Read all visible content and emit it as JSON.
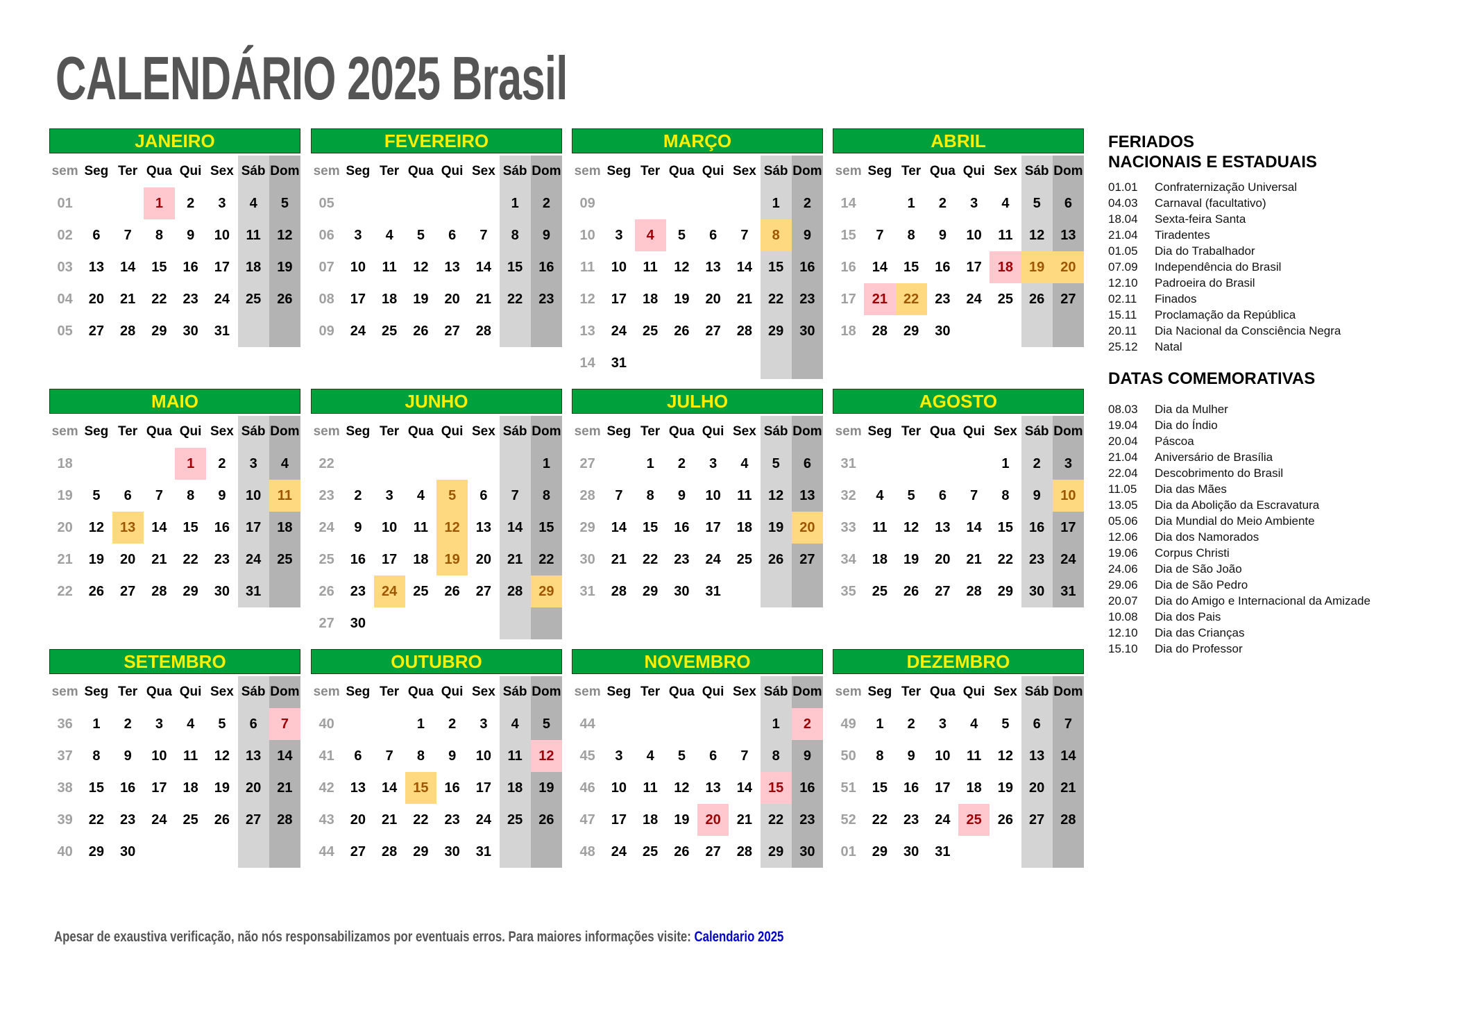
{
  "title": "CALENDÁRIO 2025 Brasil",
  "colors": {
    "header_green": "#00a03c",
    "header_text": "#ffee00",
    "holiday_bg": "#ffc7ce",
    "holiday_text": "#9c0006",
    "commemorative_bg": "#ffd980",
    "commemorative_text": "#9c5700",
    "saturday_bg": "#d4d4d4",
    "sunday_bg": "#b3b3b3"
  },
  "day_headers": [
    "sem",
    "Seg",
    "Ter",
    "Qua",
    "Qui",
    "Sex",
    "Sáb",
    "Dom"
  ],
  "months": [
    {
      "name": "JANEIRO",
      "rows": [
        [
          "01",
          "",
          "",
          "1",
          "2",
          "3",
          "4",
          "5"
        ],
        [
          "02",
          "6",
          "7",
          "8",
          "9",
          "10",
          "11",
          "12"
        ],
        [
          "03",
          "13",
          "14",
          "15",
          "16",
          "17",
          "18",
          "19"
        ],
        [
          "04",
          "20",
          "21",
          "22",
          "23",
          "24",
          "25",
          "26"
        ],
        [
          "05",
          "27",
          "28",
          "29",
          "30",
          "31",
          "",
          ""
        ]
      ],
      "holidays": [
        "1"
      ],
      "commemorative": []
    },
    {
      "name": "FEVEREIRO",
      "rows": [
        [
          "05",
          "",
          "",
          "",
          "",
          "",
          "1",
          "2"
        ],
        [
          "06",
          "3",
          "4",
          "5",
          "6",
          "7",
          "8",
          "9"
        ],
        [
          "07",
          "10",
          "11",
          "12",
          "13",
          "14",
          "15",
          "16"
        ],
        [
          "08",
          "17",
          "18",
          "19",
          "20",
          "21",
          "22",
          "23"
        ],
        [
          "09",
          "24",
          "25",
          "26",
          "27",
          "28",
          "",
          ""
        ]
      ],
      "holidays": [],
      "commemorative": []
    },
    {
      "name": "MARÇO",
      "rows": [
        [
          "09",
          "",
          "",
          "",
          "",
          "",
          "1",
          "2"
        ],
        [
          "10",
          "3",
          "4",
          "5",
          "6",
          "7",
          "8",
          "9"
        ],
        [
          "11",
          "10",
          "11",
          "12",
          "13",
          "14",
          "15",
          "16"
        ],
        [
          "12",
          "17",
          "18",
          "19",
          "20",
          "21",
          "22",
          "23"
        ],
        [
          "13",
          "24",
          "25",
          "26",
          "27",
          "28",
          "29",
          "30"
        ],
        [
          "14",
          "31",
          "",
          "",
          "",
          "",
          "",
          ""
        ]
      ],
      "holidays": [
        "4"
      ],
      "commemorative": [
        "8"
      ]
    },
    {
      "name": "ABRIL",
      "rows": [
        [
          "14",
          "",
          "1",
          "2",
          "3",
          "4",
          "5",
          "6"
        ],
        [
          "15",
          "7",
          "8",
          "9",
          "10",
          "11",
          "12",
          "13"
        ],
        [
          "16",
          "14",
          "15",
          "16",
          "17",
          "18",
          "19",
          "20"
        ],
        [
          "17",
          "21",
          "22",
          "23",
          "24",
          "25",
          "26",
          "27"
        ],
        [
          "18",
          "28",
          "29",
          "30",
          "",
          "",
          "",
          ""
        ]
      ],
      "holidays": [
        "18",
        "21"
      ],
      "commemorative": [
        "19",
        "20",
        "22"
      ]
    },
    {
      "name": "MAIO",
      "rows": [
        [
          "18",
          "",
          "",
          "",
          "1",
          "2",
          "3",
          "4"
        ],
        [
          "19",
          "5",
          "6",
          "7",
          "8",
          "9",
          "10",
          "11"
        ],
        [
          "20",
          "12",
          "13",
          "14",
          "15",
          "16",
          "17",
          "18"
        ],
        [
          "21",
          "19",
          "20",
          "21",
          "22",
          "23",
          "24",
          "25"
        ],
        [
          "22",
          "26",
          "27",
          "28",
          "29",
          "30",
          "31",
          ""
        ]
      ],
      "holidays": [
        "1"
      ],
      "commemorative": [
        "11",
        "13"
      ]
    },
    {
      "name": "JUNHO",
      "rows": [
        [
          "22",
          "",
          "",
          "",
          "",
          "",
          "",
          "1"
        ],
        [
          "23",
          "2",
          "3",
          "4",
          "5",
          "6",
          "7",
          "8"
        ],
        [
          "24",
          "9",
          "10",
          "11",
          "12",
          "13",
          "14",
          "15"
        ],
        [
          "25",
          "16",
          "17",
          "18",
          "19",
          "20",
          "21",
          "22"
        ],
        [
          "26",
          "23",
          "24",
          "25",
          "26",
          "27",
          "28",
          "29"
        ],
        [
          "27",
          "30",
          "",
          "",
          "",
          "",
          "",
          ""
        ]
      ],
      "holidays": [],
      "commemorative": [
        "5",
        "12",
        "19",
        "24",
        "29"
      ]
    },
    {
      "name": "JULHO",
      "rows": [
        [
          "27",
          "",
          "1",
          "2",
          "3",
          "4",
          "5",
          "6"
        ],
        [
          "28",
          "7",
          "8",
          "9",
          "10",
          "11",
          "12",
          "13"
        ],
        [
          "29",
          "14",
          "15",
          "16",
          "17",
          "18",
          "19",
          "20"
        ],
        [
          "30",
          "21",
          "22",
          "23",
          "24",
          "25",
          "26",
          "27"
        ],
        [
          "31",
          "28",
          "29",
          "30",
          "31",
          "",
          "",
          ""
        ]
      ],
      "holidays": [],
      "commemorative": [
        "20"
      ]
    },
    {
      "name": "AGOSTO",
      "rows": [
        [
          "31",
          "",
          "",
          "",
          "",
          "1",
          "2",
          "3"
        ],
        [
          "32",
          "4",
          "5",
          "6",
          "7",
          "8",
          "9",
          "10"
        ],
        [
          "33",
          "11",
          "12",
          "13",
          "14",
          "15",
          "16",
          "17"
        ],
        [
          "34",
          "18",
          "19",
          "20",
          "21",
          "22",
          "23",
          "24"
        ],
        [
          "35",
          "25",
          "26",
          "27",
          "28",
          "29",
          "30",
          "31"
        ]
      ],
      "holidays": [],
      "commemorative": [
        "10"
      ]
    },
    {
      "name": "SETEMBRO",
      "rows": [
        [
          "36",
          "1",
          "2",
          "3",
          "4",
          "5",
          "6",
          "7"
        ],
        [
          "37",
          "8",
          "9",
          "10",
          "11",
          "12",
          "13",
          "14"
        ],
        [
          "38",
          "15",
          "16",
          "17",
          "18",
          "19",
          "20",
          "21"
        ],
        [
          "39",
          "22",
          "23",
          "24",
          "25",
          "26",
          "27",
          "28"
        ],
        [
          "40",
          "29",
          "30",
          "",
          "",
          "",
          "",
          ""
        ]
      ],
      "holidays": [
        "7"
      ],
      "commemorative": []
    },
    {
      "name": "OUTUBRO",
      "rows": [
        [
          "40",
          "",
          "",
          "1",
          "2",
          "3",
          "4",
          "5"
        ],
        [
          "41",
          "6",
          "7",
          "8",
          "9",
          "10",
          "11",
          "12"
        ],
        [
          "42",
          "13",
          "14",
          "15",
          "16",
          "17",
          "18",
          "19"
        ],
        [
          "43",
          "20",
          "21",
          "22",
          "23",
          "24",
          "25",
          "26"
        ],
        [
          "44",
          "27",
          "28",
          "29",
          "30",
          "31",
          "",
          ""
        ]
      ],
      "holidays": [
        "12"
      ],
      "commemorative": [
        "15"
      ]
    },
    {
      "name": "NOVEMBRO",
      "rows": [
        [
          "44",
          "",
          "",
          "",
          "",
          "",
          "1",
          "2"
        ],
        [
          "45",
          "3",
          "4",
          "5",
          "6",
          "7",
          "8",
          "9"
        ],
        [
          "46",
          "10",
          "11",
          "12",
          "13",
          "14",
          "15",
          "16"
        ],
        [
          "47",
          "17",
          "18",
          "19",
          "20",
          "21",
          "22",
          "23"
        ],
        [
          "48",
          "24",
          "25",
          "26",
          "27",
          "28",
          "29",
          "30"
        ]
      ],
      "holidays": [
        "2",
        "15",
        "20"
      ],
      "commemorative": []
    },
    {
      "name": "DEZEMBRO",
      "rows": [
        [
          "49",
          "1",
          "2",
          "3",
          "4",
          "5",
          "6",
          "7"
        ],
        [
          "50",
          "8",
          "9",
          "10",
          "11",
          "12",
          "13",
          "14"
        ],
        [
          "51",
          "15",
          "16",
          "17",
          "18",
          "19",
          "20",
          "21"
        ],
        [
          "52",
          "22",
          "23",
          "24",
          "25",
          "26",
          "27",
          "28"
        ],
        [
          "01",
          "29",
          "30",
          "31",
          "",
          "",
          "",
          ""
        ]
      ],
      "holidays": [
        "25"
      ],
      "commemorative": []
    }
  ],
  "holidays_section": {
    "heading_line1": "FERIADOS",
    "heading_line2": "NACIONAIS E ESTADUAIS",
    "items": [
      {
        "date": "01.01",
        "name": "Confraternização Universal"
      },
      {
        "date": "04.03",
        "name": "Carnaval (facultativo)"
      },
      {
        "date": "18.04",
        "name": "Sexta-feira Santa"
      },
      {
        "date": "21.04",
        "name": "Tiradentes"
      },
      {
        "date": "01.05",
        "name": "Dia do Trabalhador"
      },
      {
        "date": "07.09",
        "name": "Independência do Brasil"
      },
      {
        "date": "12.10",
        "name": "Padroeira do Brasil"
      },
      {
        "date": "02.11",
        "name": "Finados"
      },
      {
        "date": "15.11",
        "name": "Proclamação da República"
      },
      {
        "date": "20.11",
        "name": "Dia Nacional da Consciência Negra"
      },
      {
        "date": "25.12",
        "name": "Natal"
      }
    ]
  },
  "commemorative_section": {
    "heading": "DATAS COMEMORATIVAS",
    "items": [
      {
        "date": "08.03",
        "name": "Dia da Mulher"
      },
      {
        "date": "19.04",
        "name": "Dia do Índio"
      },
      {
        "date": "20.04",
        "name": "Páscoa"
      },
      {
        "date": "21.04",
        "name": "Aniversário de Brasília"
      },
      {
        "date": "22.04",
        "name": "Descobrimento do Brasil"
      },
      {
        "date": "11.05",
        "name": "Dia das Mães"
      },
      {
        "date": "13.05",
        "name": "Dia da Abolição da Escravatura"
      },
      {
        "date": "05.06",
        "name": "Dia Mundial do Meio Ambiente"
      },
      {
        "date": "12.06",
        "name": "Dia dos Namorados"
      },
      {
        "date": "19.06",
        "name": "Corpus Christi"
      },
      {
        "date": "24.06",
        "name": "Dia de São João"
      },
      {
        "date": "29.06",
        "name": "Dia de São Pedro"
      },
      {
        "date": "20.07",
        "name": "Dia do Amigo e Internacional da Amizade"
      },
      {
        "date": "10.08",
        "name": "Dia dos Pais"
      },
      {
        "date": "12.10",
        "name": "Dia das Crianças"
      },
      {
        "date": "15.10",
        "name": "Dia do Professor"
      }
    ]
  },
  "footer": {
    "text": "Apesar de exaustiva verificação, não nós responsabilizamos por eventuais erros. Para maiores informações visite: ",
    "link_label": "Calendario 2025"
  }
}
